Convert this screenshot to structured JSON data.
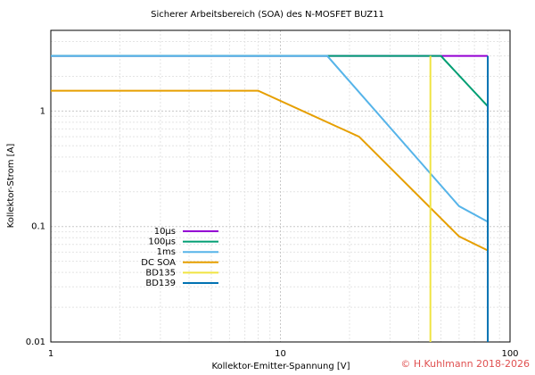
{
  "chart_data": {
    "type": "line",
    "title": "Sicherer Arbeitsbereich (SOA) des N-MOSFET BUZ11",
    "x_label": "Kollektor-Emitter-Spannung [V]",
    "y_label": "Kollektor-Strom [A]",
    "copyright": "© H.Kuhlmann 2018-2026",
    "xscale": "log",
    "yscale": "log",
    "grid": true,
    "legend": "lower-left",
    "xlim": [
      1,
      100
    ],
    "ylim": [
      0.01,
      5
    ],
    "xticks": [
      1,
      10,
      100
    ],
    "yticks": [
      0.01,
      0.1,
      1
    ],
    "series": [
      {
        "name": "10µs",
        "color": "#9400d3",
        "x": [
          1,
          80
        ],
        "values": [
          3,
          3
        ]
      },
      {
        "name": "100µs",
        "color": "#009e73",
        "x": [
          1,
          50,
          80
        ],
        "values": [
          3,
          3,
          1.1
        ]
      },
      {
        "name": "1ms",
        "color": "#56b4e9",
        "x": [
          1,
          16,
          60,
          80
        ],
        "values": [
          3,
          3,
          0.15,
          0.11
        ]
      },
      {
        "name": "DC SOA",
        "color": "#e69f00",
        "x": [
          1,
          8,
          22,
          60,
          80
        ],
        "values": [
          1.5,
          1.5,
          0.6,
          0.082,
          0.062
        ]
      },
      {
        "name": "BD135",
        "color": "#f0e442",
        "x": [
          45,
          45
        ],
        "values": [
          3,
          0.01
        ]
      },
      {
        "name": "BD139",
        "color": "#0072b2",
        "x": [
          80,
          80
        ],
        "values": [
          3,
          0.01
        ]
      }
    ]
  }
}
